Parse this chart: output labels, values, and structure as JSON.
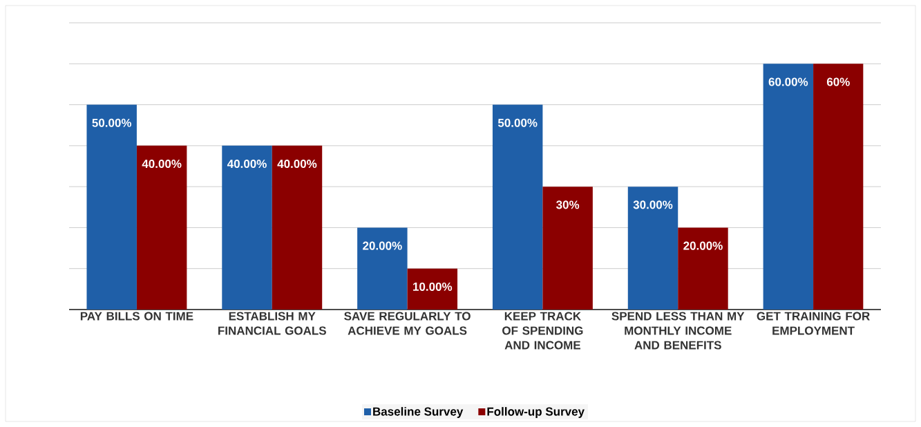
{
  "chart_data": {
    "type": "bar",
    "categories": [
      "PAY BILLS ON TIME",
      "ESTABLISH MY FINANCIAL GOALS",
      "SAVE REGULARLY TO ACHIEVE MY GOALS",
      "KEEP TRACK OF SPENDING AND INCOME",
      "SPEND LESS THAN MY MONTHLY INCOME AND BENEFITS",
      "GET TRAINING FOR EMPLOYMENT"
    ],
    "series": [
      {
        "name": "Baseline Survey",
        "color": "#1f5fa8",
        "values": [
          50,
          40,
          20,
          50,
          30,
          60
        ],
        "value_labels": [
          "50.00%",
          "40.00%",
          "20.00%",
          "50.00%",
          "30.00%",
          "60.00%"
        ]
      },
      {
        "name": "Follow-up Survey",
        "color": "#8b0000",
        "values": [
          40,
          40,
          10,
          30,
          20,
          60
        ],
        "value_labels": [
          "40.00%",
          "40.00%",
          "10.00%",
          "30%",
          "20.00%",
          "60%"
        ]
      }
    ],
    "ylim": [
      0,
      70
    ],
    "yticks": [
      {
        "value": 0,
        "label": null
      },
      {
        "value": 10,
        "label": null
      },
      {
        "value": 20,
        "label": null
      },
      {
        "value": 30,
        "label": null
      },
      {
        "value": 40,
        "label": null
      },
      {
        "value": 50,
        "label": null
      },
      {
        "value": 60,
        "label": null
      },
      {
        "value": 70,
        "label": null
      }
    ],
    "tick_labels": "x",
    "grid": "y",
    "legend": "bottom"
  }
}
